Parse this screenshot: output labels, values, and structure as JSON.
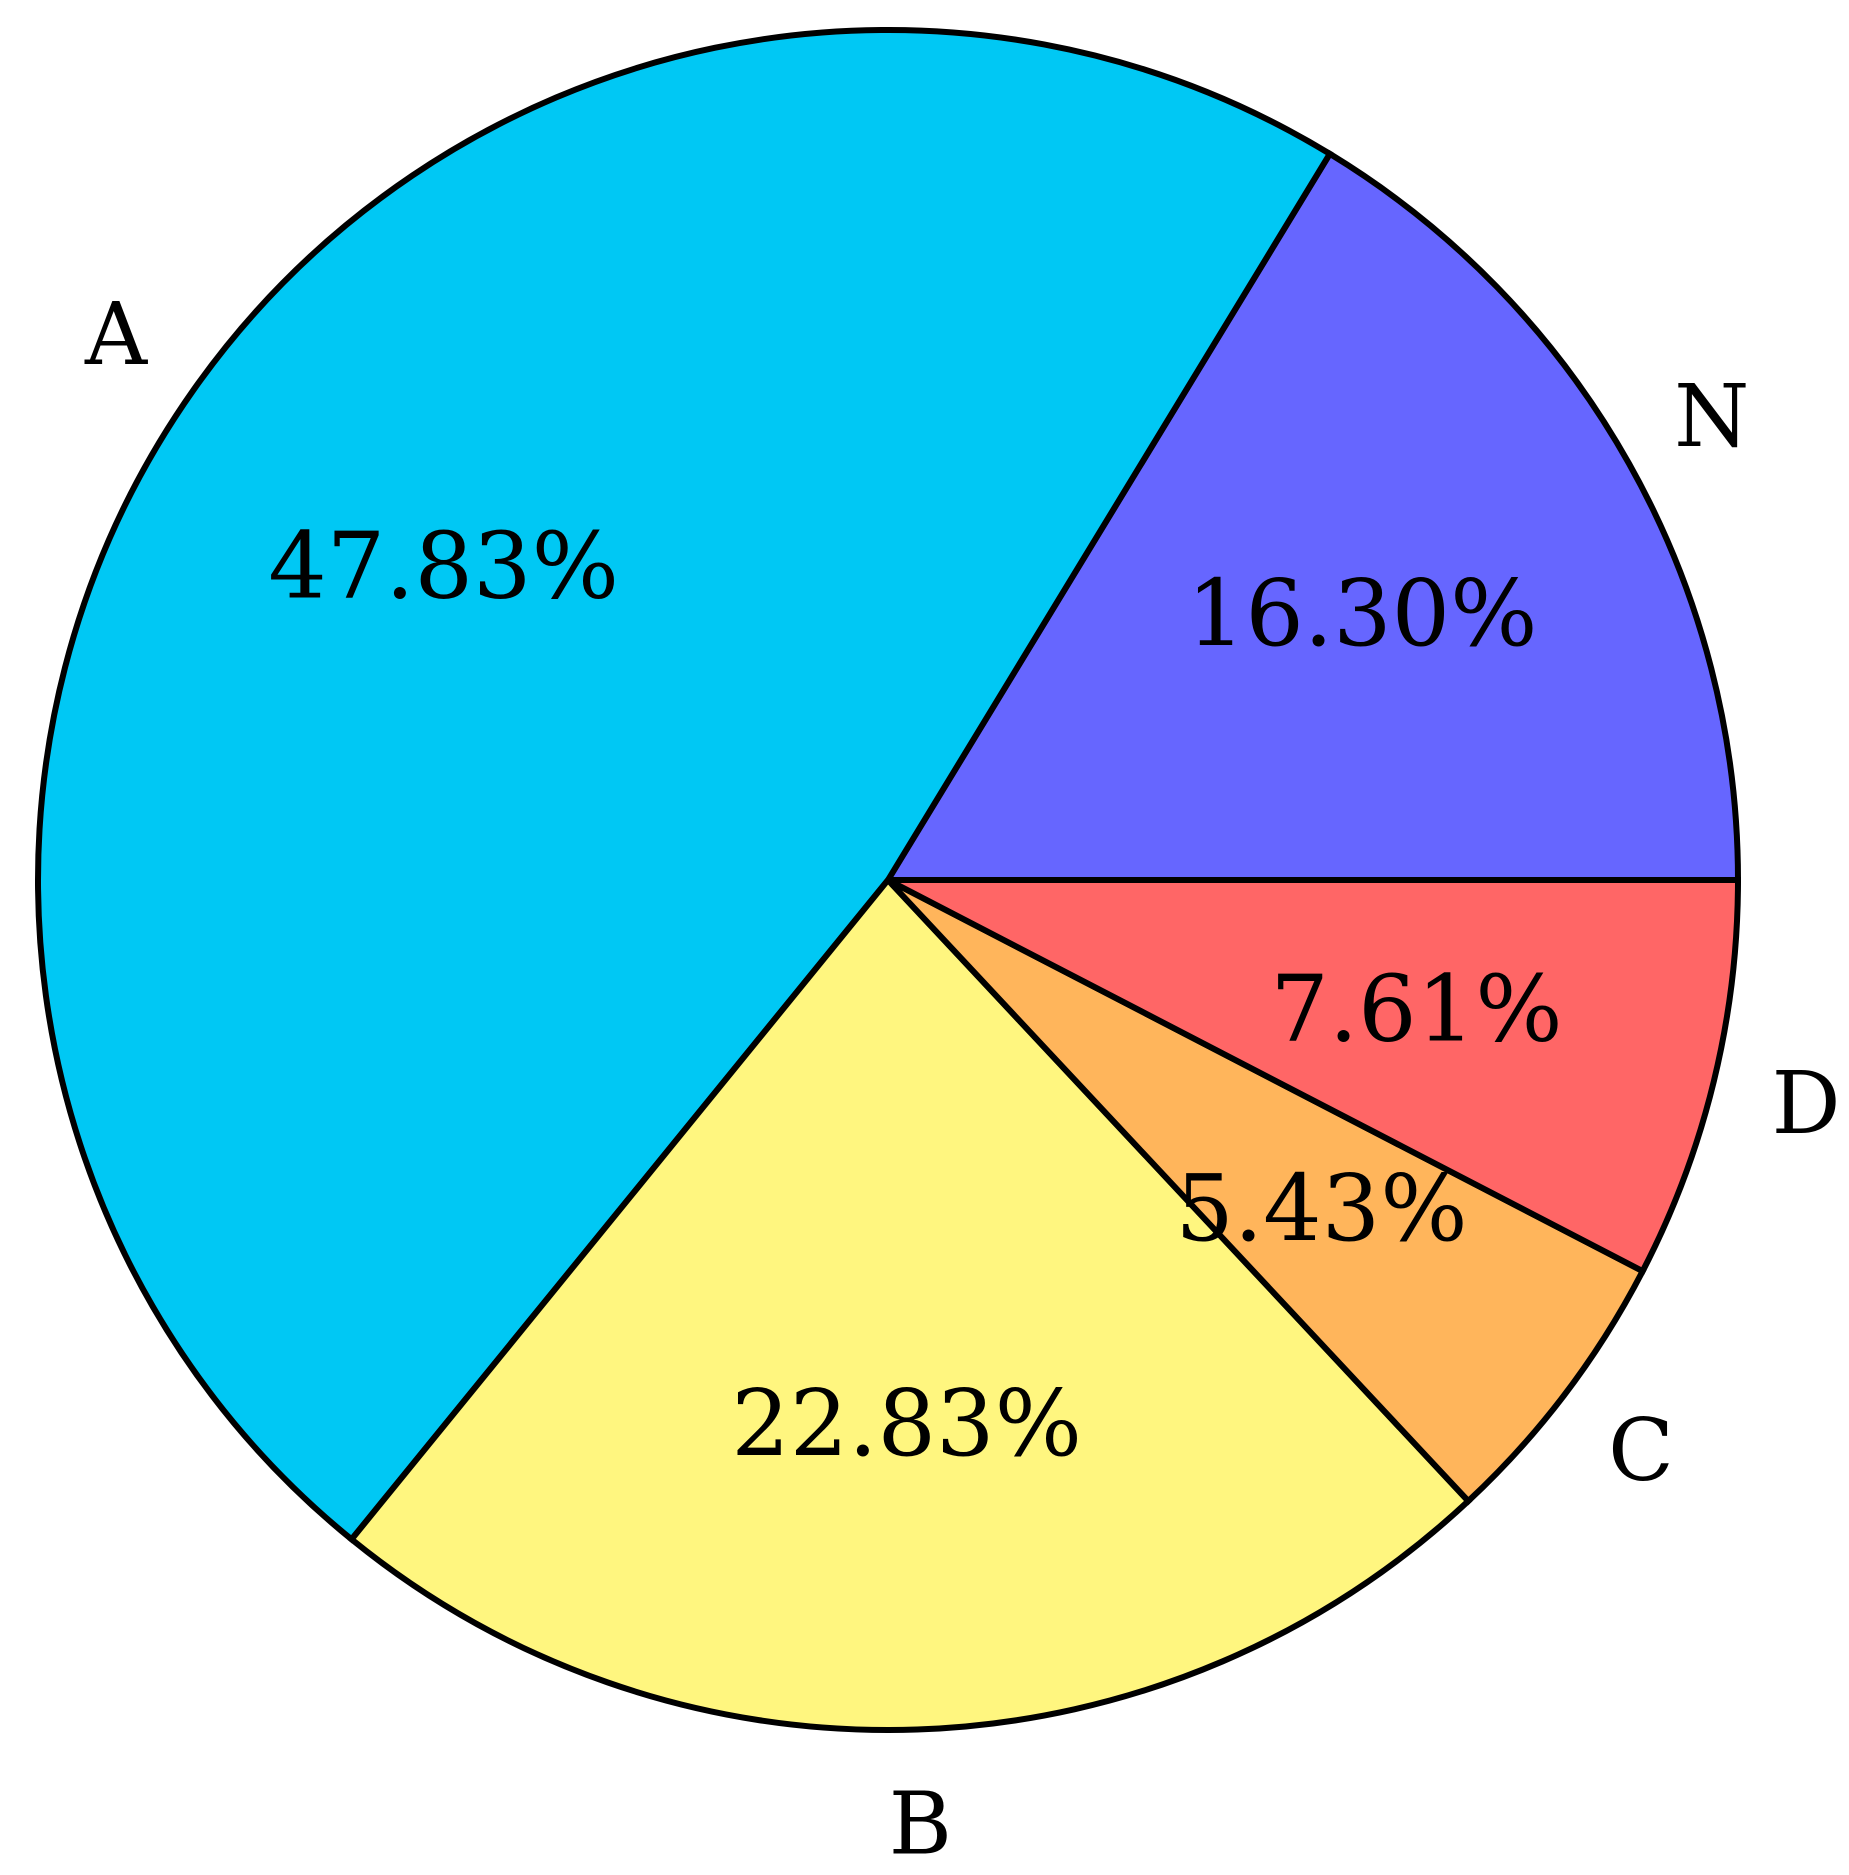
{
  "chart_data": {
    "type": "pie",
    "title": "",
    "direction": "counterclockwise",
    "start_angle_deg": 0,
    "slices": [
      {
        "label": "N",
        "value": 16.3,
        "value_label": "16.30%",
        "color": "#6666FF"
      },
      {
        "label": "A",
        "value": 47.83,
        "value_label": "47.83%",
        "color": "#00C8F4"
      },
      {
        "label": "B",
        "value": 22.83,
        "value_label": "22.83%",
        "color": "#FFF67F"
      },
      {
        "label": "C",
        "value": 5.43,
        "value_label": "5.43%",
        "color": "#FFB55B"
      },
      {
        "label": "D",
        "value": 7.61,
        "value_label": "7.61%",
        "color": "#FF6666"
      }
    ],
    "legend": "none"
  }
}
